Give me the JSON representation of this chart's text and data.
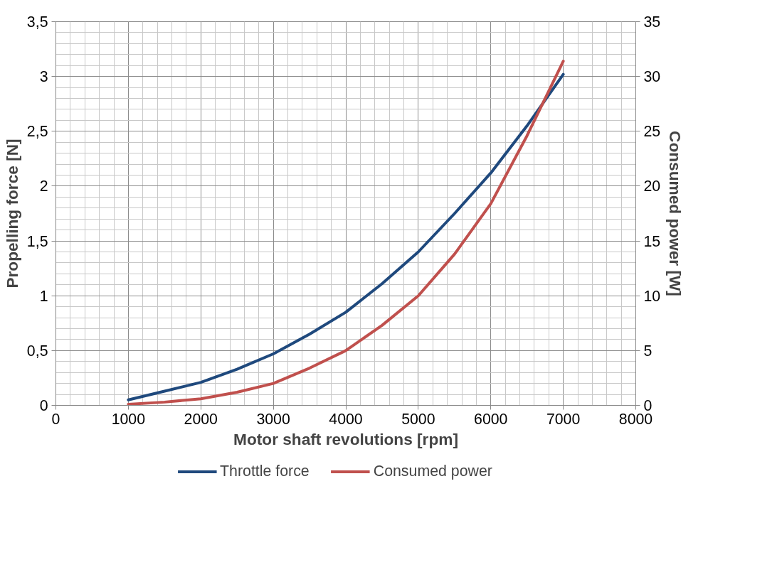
{
  "chart_data": {
    "type": "line",
    "xlabel": "Motor shaft revolutions [rpm]",
    "ylabel": "Propelling force [N]",
    "y2label": "Consumed power [W]",
    "x": [
      1000,
      1500,
      2000,
      2500,
      3000,
      3500,
      4000,
      4500,
      5000,
      5500,
      6000,
      6500,
      7000
    ],
    "series": [
      {
        "name": "Throttle force",
        "color": "#1f497d",
        "values": [
          0.05,
          0.13,
          0.21,
          0.33,
          0.47,
          0.65,
          0.85,
          1.11,
          1.4,
          1.75,
          2.12,
          2.55,
          3.02
        ]
      },
      {
        "name": "Consumed power",
        "color": "#c0504d",
        "axis": "y2",
        "values": [
          0.1,
          0.3,
          0.6,
          1.2,
          2.0,
          3.4,
          5.0,
          7.3,
          10.0,
          13.8,
          18.4,
          24.6,
          31.4
        ]
      }
    ],
    "xlim": [
      0,
      8000
    ],
    "xticks": [
      0,
      1000,
      2000,
      3000,
      4000,
      5000,
      6000,
      7000,
      8000
    ],
    "ylim": [
      0,
      3.5
    ],
    "yticks": [
      0,
      {
        "value": 0.5,
        "label": "0,5"
      },
      1,
      {
        "value": 1.5,
        "label": "1,5"
      },
      2,
      {
        "value": 2.5,
        "label": "2,5"
      },
      3,
      {
        "value": 3.5,
        "label": "3,5"
      }
    ],
    "y2lim": [
      0,
      35
    ],
    "y2ticks": [
      0,
      5,
      10,
      15,
      20,
      25,
      30,
      35
    ],
    "grid": true,
    "legend": "bottom",
    "marker": "none",
    "line_style": "solid"
  }
}
